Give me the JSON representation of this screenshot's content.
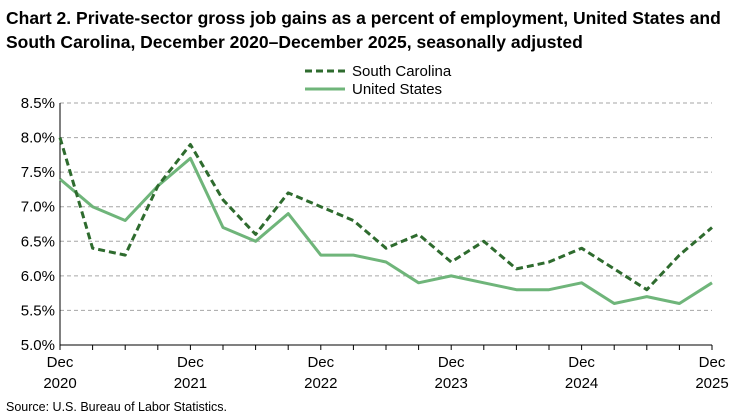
{
  "title": "Chart 2. Private-sector gross job gains as a percent of employment, United States and South Carolina, December 2020–December 2025, seasonally adjusted",
  "source": "Source: U.S. Bureau of Labor Statistics.",
  "chart_data": {
    "type": "line",
    "x": [
      "Dec 2020",
      "Mar 2021",
      "Jun 2021",
      "Sep 2021",
      "Dec 2021",
      "Mar 2022",
      "Jun 2022",
      "Sep 2022",
      "Dec 2022",
      "Mar 2023",
      "Jun 2023",
      "Sep 2023",
      "Dec 2023",
      "Mar 2024",
      "Jun 2024",
      "Sep 2024",
      "Dec 2024",
      "Mar 2025",
      "Jun 2025",
      "Sep 2025",
      "Dec 2025"
    ],
    "x_tick_labels": [
      {
        "index": 0,
        "line1": "Dec",
        "line2": "2020"
      },
      {
        "index": 4,
        "line1": "Dec",
        "line2": "2021"
      },
      {
        "index": 8,
        "line1": "Dec",
        "line2": "2022"
      },
      {
        "index": 12,
        "line1": "Dec",
        "line2": "2023"
      },
      {
        "index": 16,
        "line1": "Dec",
        "line2": "2024"
      },
      {
        "index": 20,
        "line1": "Dec",
        "line2": "2025"
      }
    ],
    "y_ticks": [
      "5.0%",
      "5.5%",
      "6.0%",
      "6.5%",
      "7.0%",
      "7.5%",
      "8.0%",
      "8.5%"
    ],
    "ylim": [
      5.0,
      8.5
    ],
    "y_step": 0.5,
    "grid": "horizontal dashed",
    "legend_placement": "top-center",
    "series": [
      {
        "name": "South Carolina",
        "style": "dashed",
        "color": "#2e6b2e",
        "values": [
          8.0,
          6.4,
          6.3,
          7.3,
          7.9,
          7.1,
          6.6,
          7.2,
          7.0,
          6.8,
          6.4,
          6.6,
          6.2,
          6.5,
          6.1,
          6.2,
          6.4,
          6.1,
          5.8,
          6.3,
          6.7
        ]
      },
      {
        "name": "United States",
        "style": "solid",
        "color": "#6fb57a",
        "values": [
          7.4,
          7.0,
          6.8,
          7.3,
          7.7,
          6.7,
          6.5,
          6.9,
          6.3,
          6.3,
          6.2,
          5.9,
          6.0,
          5.9,
          5.8,
          5.8,
          5.9,
          5.6,
          5.7,
          5.6,
          5.9
        ]
      }
    ]
  }
}
